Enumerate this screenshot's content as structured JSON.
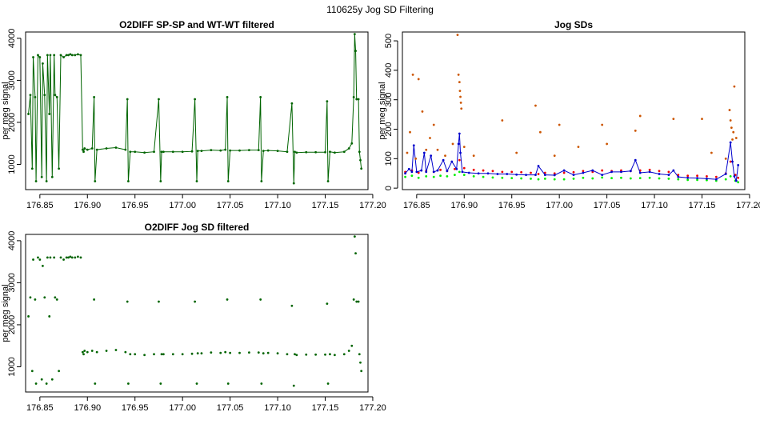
{
  "page_title": "110625y   Jog SD Filtering",
  "chart_data": [
    {
      "id": "p1",
      "type": "scatter",
      "title": "O2DIFF SP-SP and WT-WT filtered",
      "xlabel": "",
      "ylabel": "per meg signal",
      "xlim": [
        176.835,
        177.195
      ],
      "ylim": [
        400,
        4150
      ],
      "xticks": [
        "176.85",
        "176.90",
        "176.95",
        "177.00",
        "177.05",
        "177.10",
        "177.15",
        "177.20"
      ],
      "yticks": [
        "1000",
        "2000",
        "3000",
        "4000"
      ],
      "connected": true,
      "series": [
        {
          "color": "#006400",
          "x": [
            176.838,
            176.84,
            176.842,
            176.843,
            176.845,
            176.846,
            176.848,
            176.85,
            176.852,
            176.853,
            176.855,
            176.857,
            176.858,
            176.86,
            176.861,
            176.863,
            176.865,
            176.866,
            176.868,
            176.87,
            176.872,
            176.875,
            176.878,
            176.88,
            176.882,
            176.884,
            176.887,
            176.89,
            176.893,
            176.895,
            176.896,
            176.897,
            176.9,
            176.905,
            176.907,
            176.908,
            176.91,
            176.92,
            176.93,
            176.94,
            176.942,
            176.943,
            176.945,
            176.95,
            176.96,
            176.97,
            176.975,
            176.977,
            176.978,
            176.98,
            176.99,
            177.0,
            177.01,
            177.013,
            177.015,
            177.016,
            177.02,
            177.03,
            177.04,
            177.045,
            177.047,
            177.048,
            177.05,
            177.06,
            177.07,
            177.08,
            177.082,
            177.083,
            177.085,
            177.09,
            177.1,
            177.11,
            177.115,
            177.117,
            177.118,
            177.12,
            177.13,
            177.14,
            177.15,
            177.152,
            177.153,
            177.155,
            177.16,
            177.17,
            177.175,
            177.178,
            177.18,
            177.181,
            177.182,
            177.183,
            177.185,
            177.186,
            177.187,
            177.188
          ],
          "y": [
            2200,
            2650,
            900,
            3550,
            2600,
            600,
            3600,
            3550,
            700,
            3400,
            2650,
            600,
            3600,
            2200,
            3600,
            700,
            3600,
            2650,
            2600,
            900,
            3600,
            3550,
            3600,
            3600,
            3620,
            3600,
            3600,
            3620,
            3600,
            1350,
            1300,
            1380,
            1350,
            1380,
            2600,
            600,
            1350,
            1380,
            1400,
            1350,
            2550,
            600,
            1300,
            1300,
            1280,
            1300,
            2550,
            600,
            1300,
            1300,
            1300,
            1300,
            1310,
            2550,
            600,
            1320,
            1320,
            1340,
            1330,
            1350,
            2600,
            600,
            1330,
            1330,
            1340,
            1340,
            2600,
            600,
            1320,
            1330,
            1320,
            1300,
            2450,
            550,
            1300,
            1280,
            1290,
            1290,
            1290,
            2500,
            600,
            1300,
            1280,
            1300,
            1380,
            1500,
            2600,
            4100,
            3700,
            2550,
            2550,
            1300,
            1100,
            900
          ]
        }
      ]
    },
    {
      "id": "p2",
      "type": "scatter",
      "title": "Jog SDs",
      "xlabel": "",
      "ylabel": "per meg signal",
      "xlim": [
        176.835,
        177.195
      ],
      "ylim": [
        -5,
        530
      ],
      "xticks": [
        "176.85",
        "176.90",
        "176.95",
        "177.00",
        "177.05",
        "177.10",
        "177.15",
        "177.20"
      ],
      "yticks": [
        "0",
        "100",
        "200",
        "300",
        "400",
        "500"
      ],
      "series": [
        {
          "color": "#00ee00",
          "x": [
            176.838,
            176.845,
            176.852,
            176.86,
            176.868,
            176.875,
            176.882,
            176.89,
            176.895,
            176.9,
            176.91,
            176.92,
            176.93,
            176.94,
            176.95,
            176.96,
            176.97,
            176.978,
            176.985,
            176.995,
            177.005,
            177.015,
            177.025,
            177.035,
            177.045,
            177.055,
            177.065,
            177.075,
            177.085,
            177.095,
            177.105,
            177.115,
            177.125,
            177.135,
            177.145,
            177.155,
            177.165,
            177.175,
            177.18,
            177.185,
            177.188
          ],
          "y": [
            38,
            42,
            35,
            40,
            38,
            42,
            40,
            45,
            55,
            45,
            40,
            38,
            36,
            35,
            34,
            33,
            32,
            30,
            32,
            30,
            30,
            32,
            35,
            33,
            36,
            34,
            35,
            33,
            34,
            35,
            33,
            32,
            30,
            28,
            28,
            27,
            25,
            30,
            40,
            25,
            20
          ]
        },
        {
          "color": "#ee0000",
          "x": [
            176.838,
            176.845,
            176.852,
            176.86,
            176.868,
            176.875,
            176.882,
            176.89,
            176.895,
            176.9,
            176.91,
            176.92,
            176.93,
            176.94,
            176.95,
            176.96,
            176.97,
            176.978,
            176.985,
            176.995,
            177.005,
            177.015,
            177.025,
            177.035,
            177.045,
            177.055,
            177.065,
            177.075,
            177.085,
            177.095,
            177.105,
            177.115,
            177.125,
            177.135,
            177.145,
            177.155,
            177.165,
            177.175,
            177.18,
            177.185,
            177.188
          ],
          "y": [
            55,
            60,
            52,
            58,
            55,
            62,
            58,
            65,
            95,
            68,
            62,
            60,
            58,
            55,
            55,
            54,
            52,
            48,
            52,
            50,
            52,
            54,
            58,
            55,
            60,
            58,
            60,
            58,
            60,
            62,
            58,
            55,
            45,
            42,
            42,
            40,
            38,
            50,
            90,
            45,
            35
          ]
        },
        {
          "color": "#0000cc",
          "connected": true,
          "x": [
            176.838,
            176.842,
            176.845,
            176.847,
            176.85,
            176.855,
            176.858,
            176.86,
            176.865,
            176.868,
            176.872,
            176.878,
            176.882,
            176.887,
            176.892,
            176.894,
            176.895,
            176.896,
            176.898,
            176.905,
            176.915,
            176.925,
            176.935,
            176.945,
            176.955,
            176.965,
            176.975,
            176.978,
            176.985,
            176.995,
            177.005,
            177.015,
            177.025,
            177.035,
            177.045,
            177.055,
            177.065,
            177.075,
            177.08,
            177.085,
            177.095,
            177.105,
            177.115,
            177.12,
            177.125,
            177.135,
            177.145,
            177.155,
            177.165,
            177.175,
            177.18,
            177.182,
            177.184,
            177.186,
            177.188
          ],
          "y": [
            50,
            65,
            55,
            145,
            55,
            60,
            120,
            55,
            110,
            55,
            60,
            95,
            58,
            90,
            65,
            150,
            185,
            120,
            55,
            52,
            50,
            50,
            48,
            48,
            46,
            45,
            45,
            75,
            45,
            44,
            60,
            45,
            52,
            60,
            45,
            55,
            55,
            58,
            95,
            52,
            55,
            48,
            45,
            60,
            38,
            35,
            34,
            32,
            30,
            48,
            155,
            90,
            40,
            25,
            78
          ]
        },
        {
          "color": "#cc5500",
          "x": [
            176.84,
            176.843,
            176.846,
            176.849,
            176.852,
            176.856,
            176.86,
            176.864,
            176.868,
            176.872,
            176.88,
            176.888,
            176.893,
            176.894,
            176.895,
            176.8955,
            176.896,
            176.8965,
            176.897,
            176.9,
            176.91,
            176.94,
            176.955,
            176.975,
            176.98,
            176.995,
            177.0,
            177.02,
            177.045,
            177.05,
            177.08,
            177.085,
            177.12,
            177.15,
            177.16,
            177.175,
            177.179,
            177.18,
            177.181,
            177.182,
            177.183,
            177.184,
            177.186
          ],
          "y": [
            120,
            190,
            385,
            100,
            370,
            260,
            130,
            170,
            215,
            130,
            110,
            150,
            520,
            385,
            360,
            330,
            310,
            290,
            270,
            140,
            110,
            230,
            120,
            280,
            190,
            110,
            215,
            140,
            215,
            150,
            195,
            245,
            235,
            235,
            120,
            100,
            265,
            230,
            205,
            165,
            190,
            345,
            170
          ]
        }
      ]
    },
    {
      "id": "p3",
      "type": "scatter",
      "title": "O2DIFF Jog SD filtered",
      "xlabel": "",
      "ylabel": "per meg signal",
      "xlim": [
        176.835,
        177.195
      ],
      "ylim": [
        400,
        4150
      ],
      "xticks": [
        "176.85",
        "176.90",
        "176.95",
        "177.00",
        "177.05",
        "177.10",
        "177.15",
        "177.20"
      ],
      "yticks": [
        "1000",
        "2000",
        "3000",
        "4000"
      ],
      "series": [
        {
          "color": "#006400",
          "x": [
            176.838,
            176.84,
            176.842,
            176.843,
            176.845,
            176.846,
            176.848,
            176.85,
            176.852,
            176.853,
            176.855,
            176.857,
            176.858,
            176.86,
            176.861,
            176.863,
            176.865,
            176.866,
            176.868,
            176.87,
            176.872,
            176.875,
            176.878,
            176.88,
            176.882,
            176.884,
            176.887,
            176.89,
            176.893,
            176.895,
            176.896,
            176.897,
            176.9,
            176.905,
            176.907,
            176.908,
            176.91,
            176.92,
            176.93,
            176.94,
            176.942,
            176.943,
            176.945,
            176.95,
            176.96,
            176.97,
            176.975,
            176.977,
            176.978,
            176.98,
            176.99,
            177.0,
            177.01,
            177.013,
            177.015,
            177.016,
            177.02,
            177.03,
            177.04,
            177.045,
            177.047,
            177.048,
            177.05,
            177.06,
            177.07,
            177.08,
            177.082,
            177.083,
            177.085,
            177.09,
            177.1,
            177.11,
            177.115,
            177.117,
            177.118,
            177.12,
            177.13,
            177.14,
            177.15,
            177.152,
            177.153,
            177.155,
            177.16,
            177.17,
            177.175,
            177.178,
            177.18,
            177.181,
            177.182,
            177.183,
            177.185,
            177.186,
            177.187,
            177.188
          ],
          "y": [
            2200,
            2650,
            900,
            3550,
            2600,
            600,
            3600,
            3550,
            700,
            3400,
            2650,
            600,
            3600,
            2200,
            3600,
            700,
            3600,
            2650,
            2600,
            900,
            3600,
            3550,
            3600,
            3600,
            3620,
            3600,
            3600,
            3620,
            3600,
            1350,
            1300,
            1380,
            1350,
            1380,
            2600,
            600,
            1350,
            1380,
            1400,
            1350,
            2550,
            600,
            1300,
            1300,
            1280,
            1300,
            2550,
            600,
            1300,
            1300,
            1300,
            1300,
            1310,
            2550,
            600,
            1320,
            1320,
            1340,
            1330,
            1350,
            2600,
            600,
            1330,
            1330,
            1340,
            1340,
            2600,
            600,
            1320,
            1330,
            1320,
            1300,
            2450,
            550,
            1300,
            1280,
            1290,
            1290,
            1290,
            2500,
            600,
            1300,
            1280,
            1300,
            1380,
            1500,
            2600,
            4100,
            3700,
            2550,
            2550,
            1300,
            1100,
            900
          ]
        }
      ]
    }
  ]
}
